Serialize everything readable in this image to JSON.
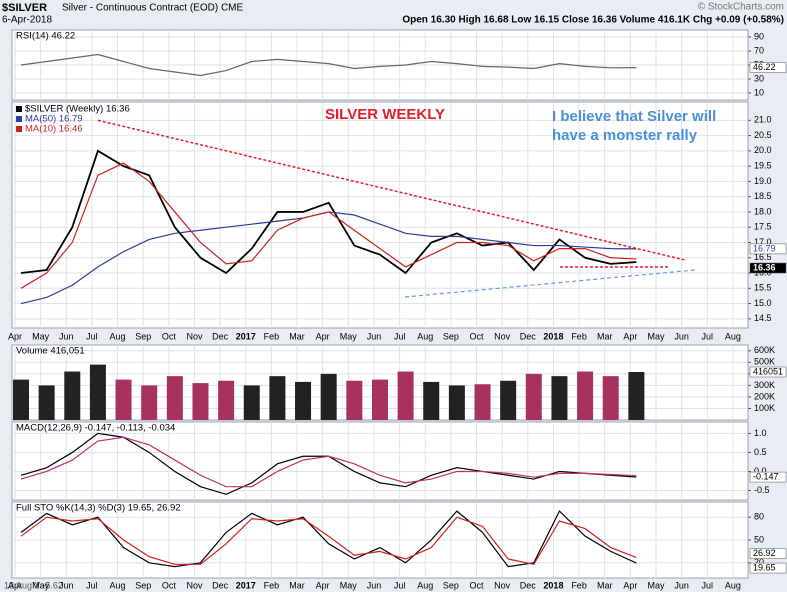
{
  "header": {
    "symbol": "$SILVER",
    "name": "Silver - Continuous Contract (EOD) CME",
    "date": "6-Apr-2018",
    "quote": "Open 16.30 High 16.68 Low 16.15 Close 16.36 Volume 416.1K Chg +0.09 (+0.58%)",
    "credit": "© StockCharts.com",
    "cursor": "13 Aug Y:-5.62"
  },
  "chart_data": [
    {
      "type": "line",
      "title": "RSI(14) 46.22",
      "ylim": [
        0,
        100
      ],
      "yticks": [
        10,
        30,
        50,
        70,
        90
      ],
      "grid": true,
      "series": [
        {
          "color": "#666666",
          "values": [
            50,
            55,
            60,
            65,
            55,
            45,
            40,
            35,
            42,
            55,
            58,
            55,
            52,
            45,
            48,
            50,
            55,
            52,
            48,
            47,
            45,
            52,
            48,
            46,
            46.22,
            null,
            null,
            null,
            null
          ]
        }
      ]
    },
    {
      "type": "line",
      "annotations": [
        "SILVER WEEKLY",
        "I believe that Silver will",
        "have a monster rally"
      ],
      "categories": [
        "Apr",
        "May",
        "Jun",
        "Jul",
        "Aug",
        "Sep",
        "Oct",
        "Nov",
        "Dec",
        "2017",
        "Feb",
        "Mar",
        "Apr",
        "May",
        "Jun",
        "Jul",
        "Aug",
        "Sep",
        "Oct",
        "Nov",
        "Dec",
        "2018",
        "Feb",
        "Mar",
        "Apr",
        "May",
        "Jun",
        "Jul",
        "Aug"
      ],
      "ylim": [
        14.2,
        21.6
      ],
      "yticks": [
        14.5,
        {
          "value": 15,
          "label": "15.0"
        },
        15.5,
        {
          "value": 16,
          "label": "16.0"
        },
        16.5,
        {
          "value": 17,
          "label": "17.0"
        },
        17.5,
        {
          "value": 18,
          "label": "18.0"
        },
        18.5,
        {
          "value": 19,
          "label": "19.0"
        },
        19.5,
        {
          "value": 20,
          "label": "20.0"
        },
        20.5,
        {
          "value": 21,
          "label": "21.0"
        }
      ],
      "grid": true,
      "series": [
        {
          "name": "$SILVER (Weekly) 16.36",
          "color": "#000000",
          "values": [
            16.0,
            16.1,
            17.5,
            20.0,
            19.5,
            19.2,
            17.5,
            16.5,
            16.0,
            16.8,
            18.0,
            18.0,
            18.3,
            16.9,
            16.6,
            16.0,
            17.0,
            17.3,
            16.9,
            17.0,
            16.1,
            17.1,
            16.5,
            16.3,
            16.36,
            null,
            null,
            null,
            null
          ]
        },
        {
          "name": "MA(50) 16.79",
          "color": "#2a3d9e",
          "values": [
            15.0,
            15.2,
            15.6,
            16.2,
            16.7,
            17.1,
            17.3,
            17.4,
            17.5,
            17.6,
            17.7,
            17.8,
            18.0,
            17.9,
            17.6,
            17.3,
            17.2,
            17.2,
            17.1,
            17.0,
            16.9,
            16.9,
            16.85,
            16.8,
            16.79,
            null,
            null,
            null,
            null
          ]
        },
        {
          "name": "MA(10) 16.46",
          "color": "#d02020",
          "values": [
            15.5,
            16.0,
            17.0,
            19.2,
            19.6,
            19.0,
            18.0,
            17.0,
            16.3,
            16.4,
            17.4,
            17.8,
            18.0,
            17.4,
            16.8,
            16.2,
            16.6,
            17.0,
            17.0,
            16.9,
            16.4,
            16.8,
            16.8,
            16.5,
            16.46,
            null,
            null,
            null,
            null
          ]
        }
      ]
    },
    {
      "type": "bar",
      "title": "Volume 416,051",
      "ylim": [
        0,
        650000
      ],
      "yticks": [
        {
          "value": 100000,
          "label": "100K"
        },
        {
          "value": 200000,
          "label": "200K"
        },
        {
          "value": 300000,
          "label": "300K"
        },
        {
          "value": 400000,
          "label": "400K"
        },
        {
          "value": 500000,
          "label": "500K"
        },
        {
          "value": 600000,
          "label": "600K"
        }
      ],
      "grid": true,
      "up_color": "#222222",
      "down_color": "#a8325f",
      "values": [
        350000,
        300000,
        420000,
        480000,
        350000,
        300000,
        380000,
        320000,
        340000,
        300000,
        380000,
        330000,
        400000,
        340000,
        350000,
        420000,
        330000,
        300000,
        310000,
        340000,
        400000,
        380000,
        420000,
        380000,
        416051,
        null,
        null,
        null,
        null
      ]
    },
    {
      "type": "line",
      "title": "MACD(12,26,9) -0.147, -0.113, -0.034",
      "ylim": [
        -0.75,
        1.3
      ],
      "yticks": [
        -0.5,
        {
          "value": 0,
          "label": "0.0"
        },
        0.5,
        {
          "value": 1,
          "label": "1.0"
        }
      ],
      "grid": true,
      "series": [
        {
          "color": "#000000",
          "values": [
            -0.1,
            0.1,
            0.5,
            1.0,
            0.9,
            0.5,
            0.0,
            -0.4,
            -0.6,
            -0.3,
            0.2,
            0.4,
            0.4,
            0.0,
            -0.3,
            -0.4,
            -0.1,
            0.1,
            0.0,
            -0.1,
            -0.2,
            0.0,
            -0.05,
            -0.1,
            -0.147,
            null,
            null,
            null,
            null
          ]
        },
        {
          "color": "#c0306a",
          "values": [
            -0.2,
            0.0,
            0.3,
            0.8,
            0.9,
            0.7,
            0.3,
            -0.1,
            -0.4,
            -0.4,
            0.0,
            0.3,
            0.4,
            0.2,
            -0.1,
            -0.3,
            -0.2,
            0.0,
            0.0,
            -0.05,
            -0.15,
            -0.05,
            -0.05,
            -0.08,
            -0.113,
            null,
            null,
            null,
            null
          ]
        }
      ]
    },
    {
      "type": "line",
      "title": "Full STO %K(14,3) %D(3) 19.65, 26.92",
      "categories": [
        "Apr",
        "May",
        "Jun",
        "Jul",
        "Aug",
        "Sep",
        "Oct",
        "Nov",
        "Dec",
        "2017",
        "Feb",
        "Mar",
        "Apr",
        "May",
        "Jun",
        "Jul",
        "Aug",
        "Sep",
        "Oct",
        "Nov",
        "Dec",
        "2018",
        "Feb",
        "Mar",
        "Apr",
        "May",
        "Jun",
        "Jul",
        "Aug"
      ],
      "ylim": [
        0,
        100
      ],
      "yticks": [
        20,
        50,
        80
      ],
      "grid": true,
      "series": [
        {
          "color": "#000000",
          "values": [
            60,
            85,
            70,
            80,
            40,
            20,
            15,
            20,
            60,
            85,
            70,
            80,
            45,
            25,
            40,
            20,
            50,
            88,
            60,
            15,
            20,
            88,
            55,
            35,
            19.65,
            null,
            null,
            null,
            null
          ]
        },
        {
          "color": "#d02020",
          "values": [
            55,
            80,
            75,
            78,
            50,
            28,
            18,
            18,
            45,
            78,
            75,
            78,
            55,
            30,
            35,
            25,
            40,
            80,
            68,
            25,
            18,
            75,
            65,
            40,
            26.92,
            null,
            null,
            null,
            null
          ]
        }
      ]
    }
  ]
}
